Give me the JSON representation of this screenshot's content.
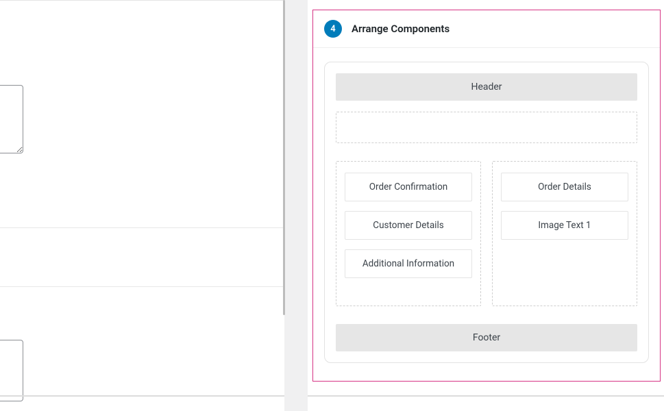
{
  "colors": {
    "accent": "#007cba",
    "highlight_border": "#d63384",
    "slot_bg": "#e6e6e6",
    "card_border": "#e4e4e4",
    "dashed_border": "#cfcfcf",
    "text": "#3c434a",
    "panel_divider": "#eeeeee"
  },
  "left": {
    "textarea_value": "",
    "bottom_box_value": ""
  },
  "arrange": {
    "step_number": "4",
    "title": "Arrange Components",
    "header_label": "Header",
    "footer_label": "Footer",
    "left_column": [
      "Order Confirmation",
      "Customer Details",
      "Additional Information"
    ],
    "right_column": [
      "Order Details",
      "Image Text 1"
    ]
  }
}
